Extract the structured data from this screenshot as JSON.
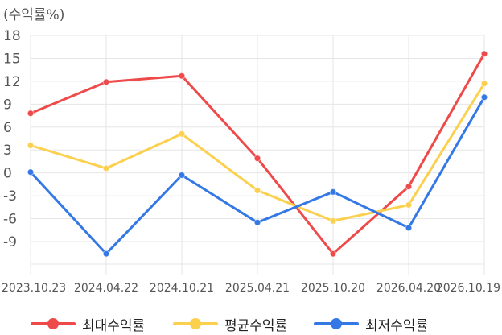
{
  "chart_data": {
    "type": "line",
    "title": "",
    "ylabel": "(수익률%)",
    "xlabel": "",
    "categories": [
      "2023.10.23",
      "2024.04.22",
      "2024.10.21",
      "2025.04.21",
      "2025.10.20",
      "2026.04.20",
      "2026.10.19"
    ],
    "x_points": [
      0,
      1,
      2,
      3,
      4,
      5,
      6
    ],
    "ylim": [
      -12,
      18
    ],
    "yticks": [
      18,
      15,
      12,
      9,
      6,
      3,
      0,
      -3,
      -6,
      -9
    ],
    "grid": true,
    "legend_position": "bottom",
    "series": [
      {
        "name": "최대수익률",
        "color": "#ee4a4a",
        "values": [
          7.8,
          11.9,
          12.7,
          1.9,
          -10.6,
          -1.8,
          15.6
        ],
        "x": [
          0,
          1,
          2,
          3,
          4,
          5,
          6
        ]
      },
      {
        "name": "평균수익률",
        "color": "#fcd04f",
        "values": [
          3.6,
          0.6,
          5.1,
          -2.3,
          -6.3,
          -4.2,
          11.7
        ],
        "x": [
          0,
          1,
          2,
          3,
          4,
          5,
          6
        ]
      },
      {
        "name": "최저수익률",
        "color": "#3478e6",
        "values": [
          0.1,
          -10.6,
          -0.3,
          -6.5,
          -2.5,
          -7.2,
          9.9
        ],
        "x": [
          0,
          1,
          2,
          3,
          4,
          5,
          6
        ]
      }
    ]
  }
}
